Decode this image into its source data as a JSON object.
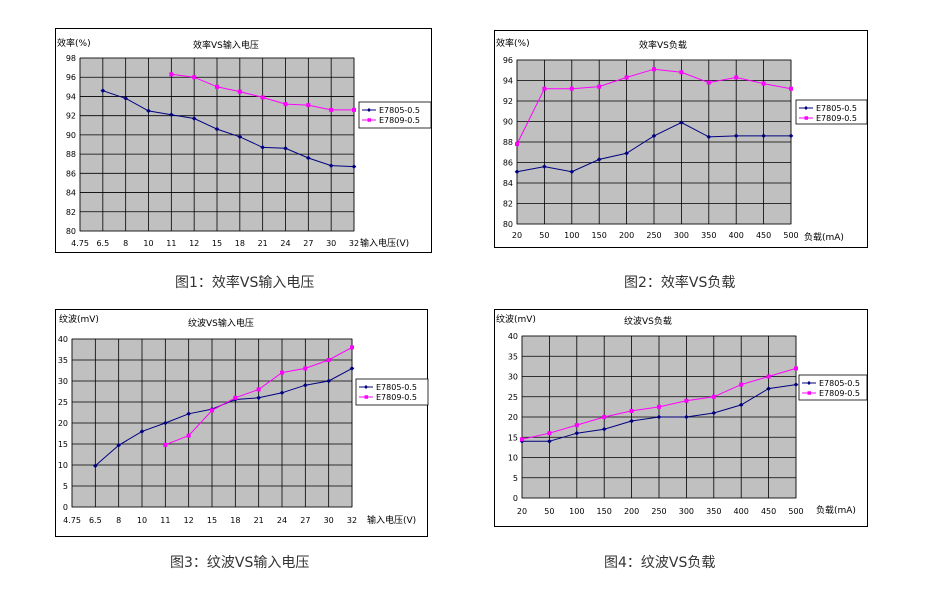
{
  "captions": [
    "图1：效率VS输入电压",
    "图2：效率VS负载",
    "图3：纹波VS输入电压",
    "图4：纹波VS负载"
  ],
  "colors": {
    "plot_bg": "#c0c0c0",
    "grid": "#000000",
    "series_a": "#000080",
    "series_b": "#ff00ff"
  },
  "chart_data": [
    {
      "type": "line",
      "title": "效率VS输入电压",
      "ylabel": "效率(%)",
      "xlabel": "输入电压(V)",
      "categories": [
        "4.75",
        "6.5",
        "8",
        "10",
        "11",
        "12",
        "15",
        "18",
        "21",
        "24",
        "27",
        "30",
        "32"
      ],
      "ylim": [
        80,
        98
      ],
      "yticks": [
        80,
        82,
        84,
        86,
        88,
        90,
        92,
        94,
        96,
        98
      ],
      "grid": true,
      "legend": "right",
      "series": [
        {
          "name": "E7805-0.5",
          "values": [
            null,
            94.6,
            93.8,
            92.5,
            92.1,
            91.7,
            90.6,
            89.8,
            88.7,
            88.6,
            87.6,
            86.8,
            86.7
          ]
        },
        {
          "name": "E7809-0.5",
          "values": [
            null,
            null,
            null,
            null,
            96.3,
            96.0,
            95.0,
            94.5,
            93.9,
            93.2,
            93.1,
            92.6,
            92.6
          ]
        }
      ]
    },
    {
      "type": "line",
      "title": "效率VS负载",
      "ylabel": "效率(%)",
      "xlabel": "负载(mA)",
      "categories": [
        "20",
        "50",
        "100",
        "150",
        "200",
        "250",
        "300",
        "350",
        "400",
        "450",
        "500"
      ],
      "ylim": [
        80,
        96
      ],
      "yticks": [
        80,
        82,
        84,
        86,
        88,
        90,
        92,
        94,
        96
      ],
      "grid": true,
      "legend": "right",
      "series": [
        {
          "name": "E7805-0.5",
          "values": [
            85.1,
            85.6,
            85.1,
            86.3,
            86.9,
            88.6,
            89.9,
            88.5,
            88.6,
            88.6,
            88.6
          ]
        },
        {
          "name": "E7809-0.5",
          "values": [
            87.8,
            93.2,
            93.2,
            93.4,
            94.3,
            95.1,
            94.8,
            93.8,
            94.3,
            93.7,
            93.2
          ]
        }
      ]
    },
    {
      "type": "line",
      "title": "纹波VS输入电压",
      "ylabel": "纹波(mV)",
      "xlabel": "输入电压(V)",
      "categories": [
        "4.75",
        "6.5",
        "8",
        "10",
        "11",
        "12",
        "15",
        "18",
        "21",
        "24",
        "27",
        "30",
        "32"
      ],
      "ylim": [
        0,
        40
      ],
      "yticks": [
        0,
        5,
        10,
        15,
        20,
        25,
        30,
        35,
        40
      ],
      "grid": true,
      "legend": "right",
      "series": [
        {
          "name": "E7805-0.5",
          "values": [
            null,
            9.8,
            14.7,
            18.0,
            20.0,
            22.2,
            23.3,
            25.6,
            26.0,
            27.2,
            29.0,
            30.0,
            33.0
          ]
        },
        {
          "name": "E7809-0.5",
          "values": [
            null,
            null,
            null,
            null,
            14.8,
            17.0,
            23.0,
            26.0,
            28.0,
            32.0,
            33.0,
            35.0,
            38.0
          ]
        }
      ]
    },
    {
      "type": "line",
      "title": "纹波VS负载",
      "ylabel": "纹波(mV)",
      "xlabel": "负载(mA)",
      "categories": [
        "20",
        "50",
        "100",
        "150",
        "200",
        "250",
        "300",
        "350",
        "400",
        "450",
        "500"
      ],
      "ylim": [
        0,
        40
      ],
      "yticks": [
        0,
        5,
        10,
        15,
        20,
        25,
        30,
        35,
        40
      ],
      "grid": true,
      "legend": "right",
      "series": [
        {
          "name": "E7805-0.5",
          "values": [
            14.0,
            14.0,
            16.0,
            17.0,
            19.0,
            20.0,
            20.0,
            21.0,
            23.0,
            27.0,
            28.0
          ]
        },
        {
          "name": "E7809-0.5",
          "values": [
            14.5,
            16.0,
            18.0,
            20.0,
            21.5,
            22.5,
            24.0,
            25.0,
            28.0,
            30.0,
            32.0
          ]
        }
      ]
    }
  ]
}
